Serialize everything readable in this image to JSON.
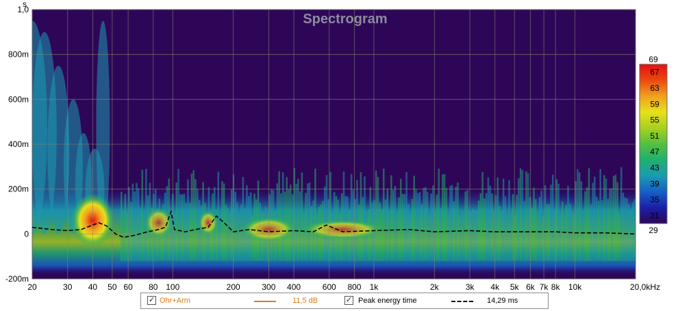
{
  "chart_data": {
    "type": "heatmap",
    "title": "Spectrogram",
    "x_axis": {
      "scale": "log",
      "unit": "Hz",
      "range": [
        20,
        20000
      ],
      "ticks": [
        "20",
        "30",
        "40",
        "50",
        "60",
        "80",
        "100",
        "200",
        "300",
        "400",
        "600",
        "800",
        "1k",
        "2k",
        "3k",
        "4k",
        "5k",
        "6k",
        "7k",
        "8k",
        "10k",
        "20,0kHz"
      ],
      "tick_values": [
        20,
        30,
        40,
        50,
        60,
        80,
        100,
        200,
        300,
        400,
        600,
        800,
        1000,
        2000,
        3000,
        4000,
        5000,
        6000,
        7000,
        8000,
        10000,
        20000
      ]
    },
    "y_axis": {
      "unit_label": "s",
      "range": [
        -0.2,
        1.0
      ],
      "ticks": [
        "1,0",
        "800m",
        "600m",
        "400m",
        "200m",
        "0",
        "-200m"
      ],
      "tick_values": [
        1.0,
        0.8,
        0.6,
        0.4,
        0.2,
        0.0,
        -0.2
      ]
    },
    "colorbar": {
      "range": [
        29,
        69
      ],
      "colors": [
        "#2e0658",
        "#1b1fa8",
        "#1560c8",
        "#1b9bb0",
        "#20b070",
        "#55c040",
        "#a8d020",
        "#e8e01a",
        "#f0a020",
        "#ec4810",
        "#e81010"
      ],
      "ticks": [
        "69",
        "67",
        "63",
        "59",
        "55",
        "51",
        "47",
        "43",
        "39",
        "35",
        "31",
        "29"
      ],
      "tick_values": [
        69,
        67,
        63,
        59,
        55,
        51,
        47,
        43,
        39,
        35,
        31,
        29
      ]
    },
    "series": [
      {
        "name": "Ohr+Arm",
        "value_label": "11,5 dB",
        "checked": true,
        "color": "#e07818"
      },
      {
        "name": "Peak energy time",
        "value_label": "14,29 ms",
        "checked": true,
        "color": "#000000",
        "style": "dashed",
        "points": [
          [
            20,
            0.03
          ],
          [
            25,
            0.02
          ],
          [
            30,
            0.015
          ],
          [
            35,
            0.02
          ],
          [
            40,
            0.04
          ],
          [
            43,
            0.05
          ],
          [
            47,
            0.035
          ],
          [
            52,
            0.0
          ],
          [
            57,
            -0.015
          ],
          [
            65,
            -0.005
          ],
          [
            75,
            0.01
          ],
          [
            85,
            0.02
          ],
          [
            92,
            0.03
          ],
          [
            98,
            0.1
          ],
          [
            102,
            0.02
          ],
          [
            115,
            0.01
          ],
          [
            130,
            0.02
          ],
          [
            150,
            0.03
          ],
          [
            165,
            0.08
          ],
          [
            180,
            0.05
          ],
          [
            200,
            0.01
          ],
          [
            240,
            0.02
          ],
          [
            300,
            0.01
          ],
          [
            400,
            0.015
          ],
          [
            500,
            0.01
          ],
          [
            580,
            0.04
          ],
          [
            700,
            0.01
          ],
          [
            1000,
            0.015
          ],
          [
            1500,
            0.02
          ],
          [
            2000,
            0.01
          ],
          [
            3000,
            0.015
          ],
          [
            4000,
            0.01
          ],
          [
            6000,
            0.01
          ],
          [
            8000,
            0.01
          ],
          [
            10000,
            0.005
          ],
          [
            14000,
            0.005
          ],
          [
            20000,
            0.0
          ]
        ]
      }
    ]
  },
  "legend": {
    "check_mark": "✓"
  }
}
